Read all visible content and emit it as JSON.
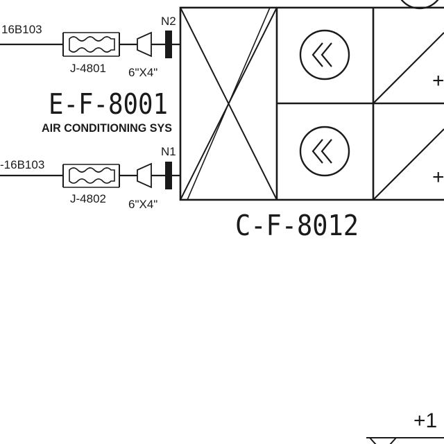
{
  "lines": {
    "upper": {
      "line_tag": "16B103",
      "joint_tag": "J-4801",
      "reducer_size": "6\"X4\"",
      "nozzle": "N2"
    },
    "lower": {
      "line_tag": "-16B103",
      "joint_tag": "J-4802",
      "reducer_size": "6\"X4\"",
      "nozzle": "N1"
    }
  },
  "equipment": {
    "fan_tag": "E-F-8001",
    "fan_service": "AIR CONDITIONING SYS",
    "unit_tag": "C-F-8012"
  },
  "level_marker": "+1",
  "cut_off_symbol": "+"
}
